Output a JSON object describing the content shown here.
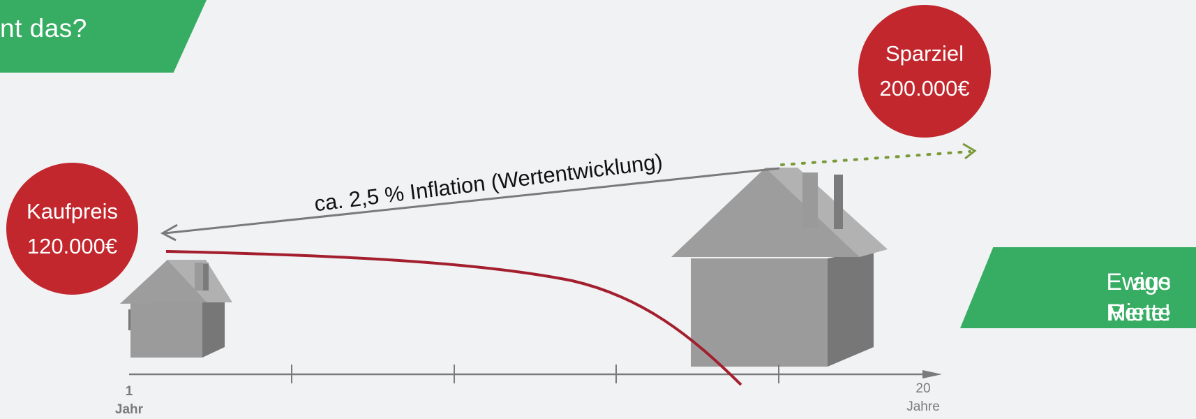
{
  "banner_top": {
    "text": "nt das?"
  },
  "banner_right": {
    "line1": "Ewige Rente",
    "line2": "aus Miete!"
  },
  "circles": {
    "kaufpreis": {
      "label": "Kaufpreis",
      "value": "120.000€"
    },
    "sparziel": {
      "label": "Sparziel",
      "value": "200.000€"
    }
  },
  "arrow_label": "ca. 2,5 % Inflation (Wertentwicklung)",
  "axis": {
    "start_value": "1",
    "start_unit": "Jahr",
    "end_value": "20",
    "end_unit": "Jahre"
  },
  "colors": {
    "green": "#36ad63",
    "red": "#c1272d",
    "curve": "#a31f2e",
    "axis_grey": "#7a7a7a",
    "dotted_green": "#7a9a3a"
  }
}
